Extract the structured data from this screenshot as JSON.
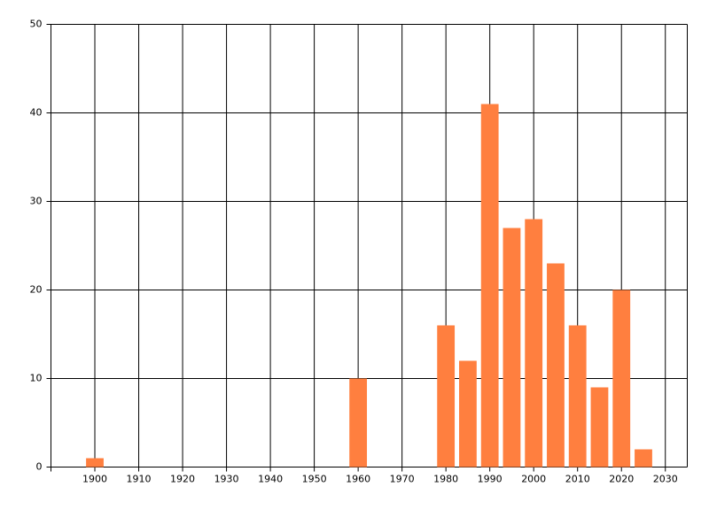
{
  "chart_data": {
    "type": "bar",
    "x": [
      1900,
      1960,
      1980,
      1985,
      1990,
      1995,
      2000,
      2005,
      2010,
      2015,
      2020,
      2025
    ],
    "values": [
      1,
      10,
      16,
      12,
      41,
      27,
      28,
      23,
      16,
      9,
      20,
      2
    ],
    "bar_width": 4,
    "color": "#ff7f3f",
    "xlim": [
      1890,
      2035
    ],
    "xticks": [
      1900,
      1910,
      1920,
      1930,
      1940,
      1950,
      1960,
      1970,
      1980,
      1990,
      2000,
      2010,
      2020,
      2030
    ],
    "ylim": [
      0,
      50
    ],
    "yticks": [
      0,
      10,
      20,
      30,
      40,
      50
    ],
    "grid": true
  }
}
